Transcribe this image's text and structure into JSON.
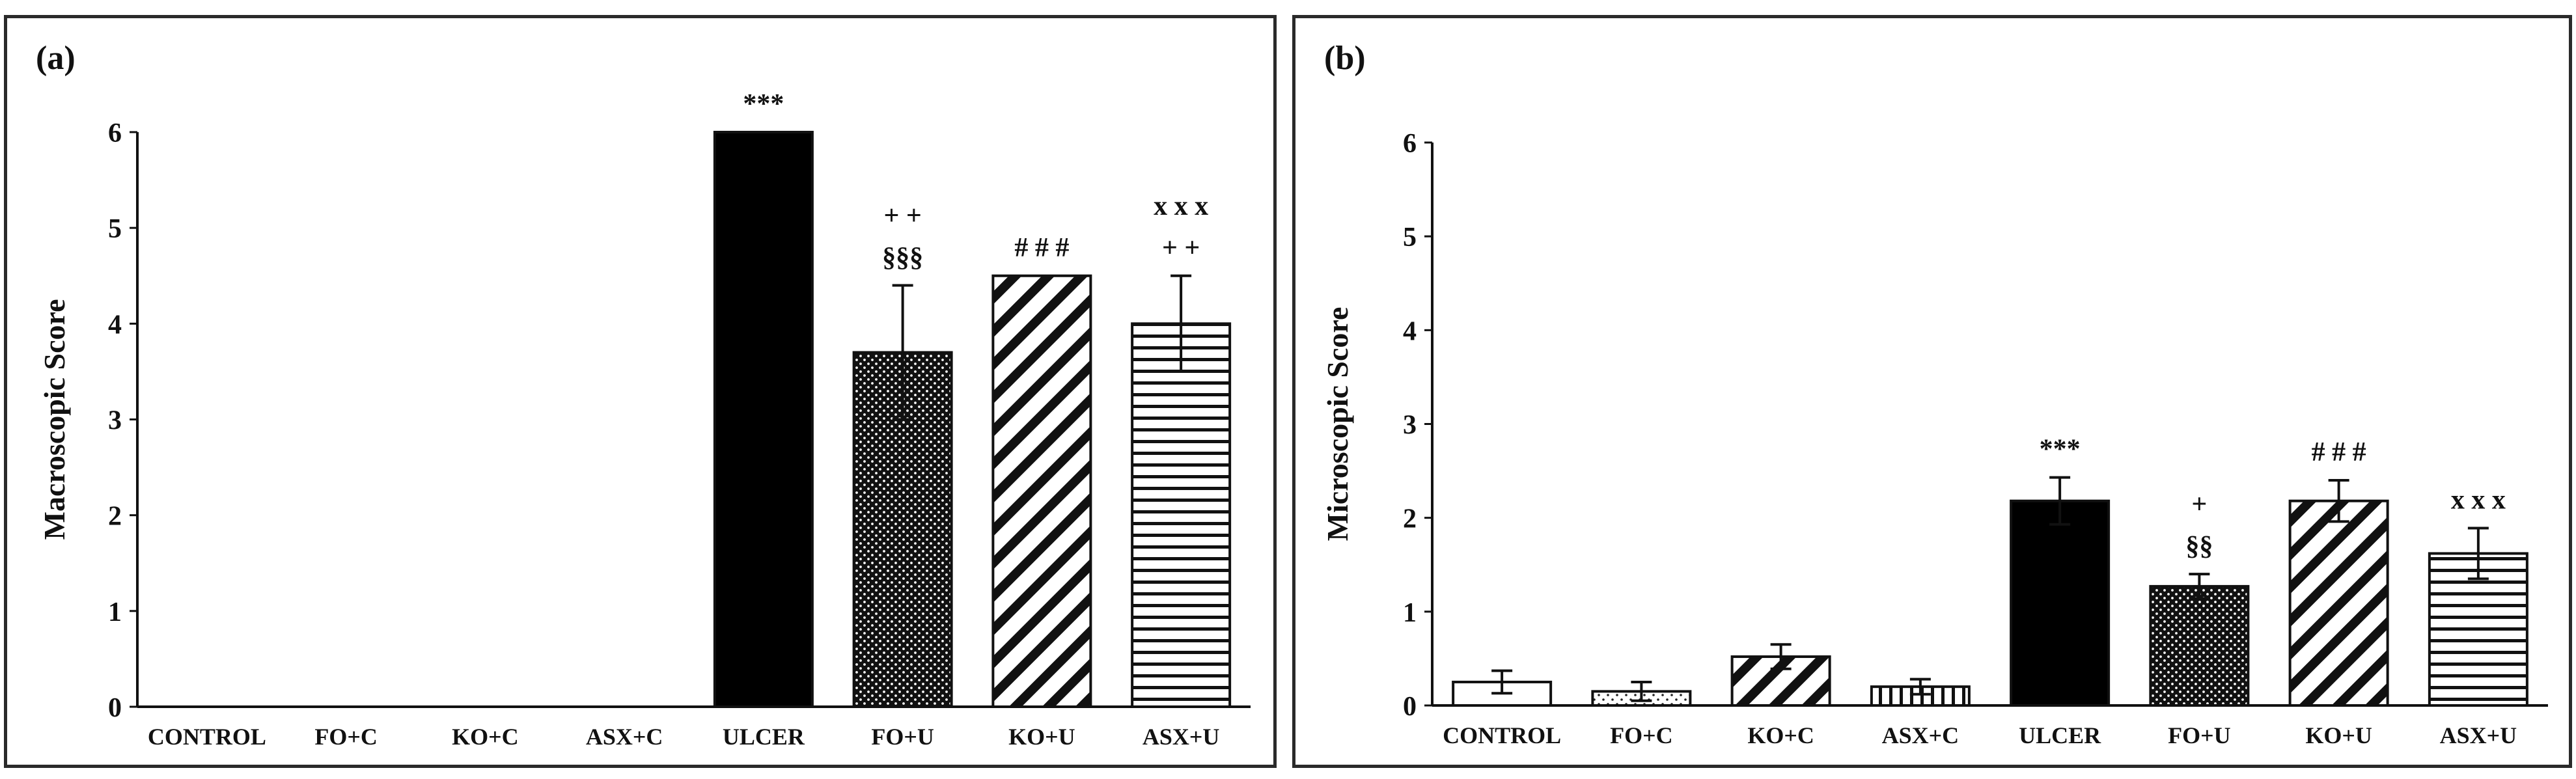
{
  "chart_data": [
    {
      "type": "bar",
      "panel": "(a)",
      "ylabel": "Macroscopic Score",
      "xlabel": "",
      "ylim": [
        0,
        6
      ],
      "yticks": [
        "0",
        "1",
        "2",
        "3",
        "4",
        "5",
        "6"
      ],
      "categories": [
        "CONTROL",
        "FO+C",
        "KO+C",
        "ASX+C",
        "ULCER",
        "FO+U",
        "KO+U",
        "ASX+U"
      ],
      "values": [
        0,
        0,
        0,
        0,
        6.0,
        3.7,
        4.5,
        4.0
      ],
      "errors": [
        0,
        0,
        0,
        0,
        0,
        0.7,
        0,
        0.5
      ],
      "fills": [
        "white",
        "dots",
        "diagonal",
        "vertical",
        "solid",
        "dense-dots",
        "diagonal",
        "horizontal"
      ],
      "annotations": [
        [],
        [],
        [],
        [],
        [
          "***"
        ],
        [
          "+ +",
          "§§§"
        ],
        [
          "# # #"
        ],
        [
          "x x x",
          "+ +"
        ]
      ]
    },
    {
      "type": "bar",
      "panel": "(b)",
      "ylabel": "Microscopic Score",
      "xlabel": "",
      "ylim": [
        0,
        6
      ],
      "yticks": [
        "0",
        "1",
        "2",
        "3",
        "4",
        "5",
        "6"
      ],
      "categories": [
        "CONTROL",
        "FO+C",
        "KO+C",
        "ASX+C",
        "ULCER",
        "FO+U",
        "KO+U",
        "ASX+U"
      ],
      "values": [
        0.25,
        0.15,
        0.52,
        0.2,
        2.18,
        1.27,
        2.18,
        1.62
      ],
      "errors": [
        0.12,
        0.1,
        0.13,
        0.08,
        0.25,
        0.13,
        0.22,
        0.27
      ],
      "fills": [
        "white",
        "dots",
        "diagonal",
        "vertical",
        "solid",
        "dense-dots",
        "diagonal",
        "horizontal"
      ],
      "annotations": [
        [],
        [],
        [],
        [],
        [
          "***"
        ],
        [
          "+",
          "§§"
        ],
        [
          "# # #"
        ],
        [
          "x x x"
        ]
      ]
    }
  ],
  "colors": {
    "bar_stroke": "#111111",
    "axis": "#111111",
    "solid_fill": "#000000"
  }
}
